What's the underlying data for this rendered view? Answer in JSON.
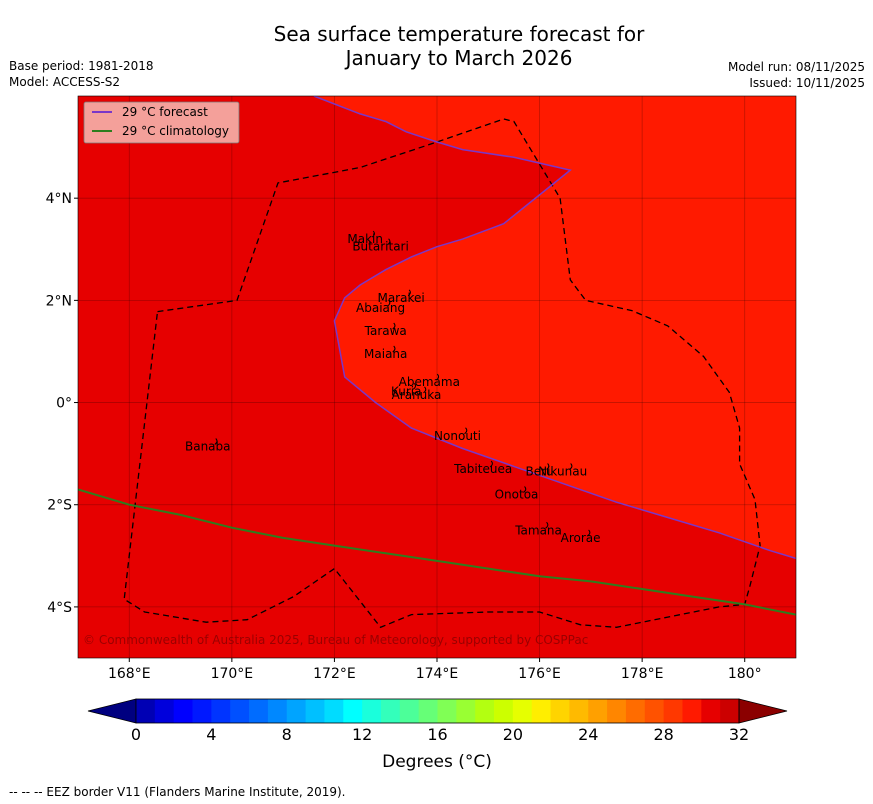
{
  "title": {
    "line1": "Sea surface temperature forecast for",
    "line2": "January to March 2026"
  },
  "meta_left": {
    "base_period": "Base period: 1981-2018",
    "model": "Model: ACCESS-S2"
  },
  "meta_right": {
    "model_run": "Model run: 08/11/2025",
    "issued": "Issued: 10/11/2025"
  },
  "legend": {
    "forecast": "29 °C  forecast",
    "climatology": "29 °C  climatology"
  },
  "copyright": "© Commonwealth of Australia 2025, Bureau of Meteorology, supported by COSPPac",
  "footer": "--  --  -- EEZ border V11 (Flanders Marine Institute, 2019).",
  "colors": {
    "warm_region": "#ff1a00",
    "cool_region": "#e60000",
    "forecast_line": "#7a37c8",
    "climatology_line": "#2e7d1e",
    "legend_bg": "#f4a09a"
  },
  "chart_data": {
    "type": "map",
    "x_axis": {
      "range_lon": [
        167,
        181
      ],
      "ticks": [
        168,
        170,
        172,
        174,
        176,
        178,
        180
      ],
      "tick_labels": [
        "168°E",
        "170°E",
        "172°E",
        "174°E",
        "176°E",
        "178°E",
        "180°"
      ]
    },
    "y_axis": {
      "range_lat": [
        -5,
        6
      ],
      "ticks": [
        4,
        2,
        0,
        -2,
        -4
      ],
      "tick_labels": [
        "4°N",
        "2°N",
        "0°",
        "2°S",
        "4°S"
      ]
    },
    "places": [
      {
        "name": "Makin",
        "lon": 172.6,
        "lat": 3.2
      },
      {
        "name": "Butaritari",
        "lon": 172.9,
        "lat": 3.05
      },
      {
        "name": "Marakei",
        "lon": 173.3,
        "lat": 2.05
      },
      {
        "name": "Abaiang",
        "lon": 172.9,
        "lat": 1.85
      },
      {
        "name": "Tarawa",
        "lon": 173.0,
        "lat": 1.4
      },
      {
        "name": "Maiana",
        "lon": 173.0,
        "lat": 0.95
      },
      {
        "name": "Abemama",
        "lon": 173.85,
        "lat": 0.4
      },
      {
        "name": "Kuria",
        "lon": 173.4,
        "lat": 0.22
      },
      {
        "name": "Aranuka",
        "lon": 173.6,
        "lat": 0.15
      },
      {
        "name": "Nonouti",
        "lon": 174.4,
        "lat": -0.65
      },
      {
        "name": "Tabiteuea",
        "lon": 174.9,
        "lat": -1.3
      },
      {
        "name": "Beru",
        "lon": 176.0,
        "lat": -1.35
      },
      {
        "name": "Nikunau",
        "lon": 176.45,
        "lat": -1.35
      },
      {
        "name": "Onotoa",
        "lon": 175.55,
        "lat": -1.8
      },
      {
        "name": "Tamana",
        "lon": 175.98,
        "lat": -2.5
      },
      {
        "name": "Arorae",
        "lon": 176.8,
        "lat": -2.65
      },
      {
        "name": "Banaba",
        "lon": 169.53,
        "lat": -0.86
      }
    ],
    "forecast_29C_contour": [
      [
        171.6,
        6.0
      ],
      [
        172.5,
        5.65
      ],
      [
        173.0,
        5.5
      ],
      [
        173.4,
        5.3
      ],
      [
        174.0,
        5.1
      ],
      [
        174.5,
        4.95
      ],
      [
        175.5,
        4.8
      ],
      [
        176.6,
        4.55
      ],
      [
        175.3,
        3.5
      ],
      [
        174.5,
        3.2
      ],
      [
        174.0,
        3.05
      ],
      [
        173.5,
        2.85
      ],
      [
        173.0,
        2.6
      ],
      [
        172.5,
        2.3
      ],
      [
        172.2,
        2.05
      ],
      [
        172.0,
        1.6
      ],
      [
        172.2,
        0.5
      ],
      [
        172.8,
        0.0
      ],
      [
        173.5,
        -0.5
      ],
      [
        174.5,
        -0.9
      ],
      [
        175.5,
        -1.25
      ],
      [
        176.5,
        -1.6
      ],
      [
        177.5,
        -1.95
      ],
      [
        178.5,
        -2.25
      ],
      [
        179.5,
        -2.55
      ],
      [
        180.5,
        -2.9
      ],
      [
        181.0,
        -3.05
      ]
    ],
    "climatology_29C_contour": [
      [
        167.0,
        -1.7
      ],
      [
        168.0,
        -2.0
      ],
      [
        169.0,
        -2.2
      ],
      [
        170.0,
        -2.45
      ],
      [
        171.0,
        -2.65
      ],
      [
        172.0,
        -2.8
      ],
      [
        173.0,
        -2.95
      ],
      [
        174.0,
        -3.1
      ],
      [
        175.0,
        -3.25
      ],
      [
        176.0,
        -3.4
      ],
      [
        177.0,
        -3.5
      ],
      [
        178.0,
        -3.65
      ],
      [
        179.0,
        -3.8
      ],
      [
        180.0,
        -3.95
      ],
      [
        181.0,
        -4.15
      ]
    ],
    "eez_border": [
      [
        168.55,
        1.78
      ],
      [
        170.1,
        2.0
      ],
      [
        170.9,
        4.3
      ],
      [
        172.5,
        4.6
      ],
      [
        174.0,
        5.1
      ],
      [
        175.3,
        5.55
      ],
      [
        175.5,
        5.5
      ],
      [
        176.4,
        4.0
      ],
      [
        176.6,
        2.4
      ],
      [
        176.9,
        2.0
      ],
      [
        177.8,
        1.8
      ],
      [
        178.5,
        1.5
      ],
      [
        179.2,
        0.9
      ],
      [
        179.7,
        0.2
      ],
      [
        179.9,
        -0.5
      ],
      [
        179.9,
        -1.2
      ],
      [
        180.2,
        -1.9
      ],
      [
        180.3,
        -2.8
      ],
      [
        180.1,
        -3.6
      ],
      [
        180.0,
        -3.95
      ],
      [
        179.5,
        -4.0
      ],
      [
        178.5,
        -4.2
      ],
      [
        177.5,
        -4.4
      ],
      [
        176.8,
        -4.35
      ],
      [
        176.0,
        -4.1
      ],
      [
        175.0,
        -4.1
      ],
      [
        173.5,
        -4.15
      ],
      [
        172.9,
        -4.4
      ],
      [
        172.0,
        -3.25
      ],
      [
        171.2,
        -3.8
      ],
      [
        170.3,
        -4.25
      ],
      [
        169.5,
        -4.3
      ],
      [
        168.3,
        -4.1
      ],
      [
        167.9,
        -3.85
      ],
      [
        168.55,
        1.78
      ]
    ],
    "colorbar": {
      "label": "Degrees ($^\\circ$C)",
      "label_display": "Degrees (°C)",
      "range": [
        0,
        32
      ],
      "step": 1,
      "ticks": [
        0,
        4,
        8,
        12,
        16,
        20,
        24,
        28,
        32
      ],
      "colors": [
        "#00008b",
        "#0000b4",
        "#0000dc",
        "#0000ff",
        "#0018ff",
        "#0034ff",
        "#0050ff",
        "#006cff",
        "#0088ff",
        "#00a4ff",
        "#00c0ff",
        "#00dcff",
        "#00ffff",
        "#1affdc",
        "#33ffbb",
        "#4cff99",
        "#66ff77",
        "#80ff55",
        "#99ff33",
        "#b3ff11",
        "#ccff00",
        "#e6ff00",
        "#ffee00",
        "#ffd400",
        "#ffba00",
        "#ffa000",
        "#ff8600",
        "#ff6c00",
        "#ff5200",
        "#ff3800",
        "#ff1a00",
        "#e60000",
        "#cc0000",
        "#b30000",
        "#8b0000"
      ],
      "under_color": "#000080",
      "over_color": "#8b0000"
    }
  }
}
